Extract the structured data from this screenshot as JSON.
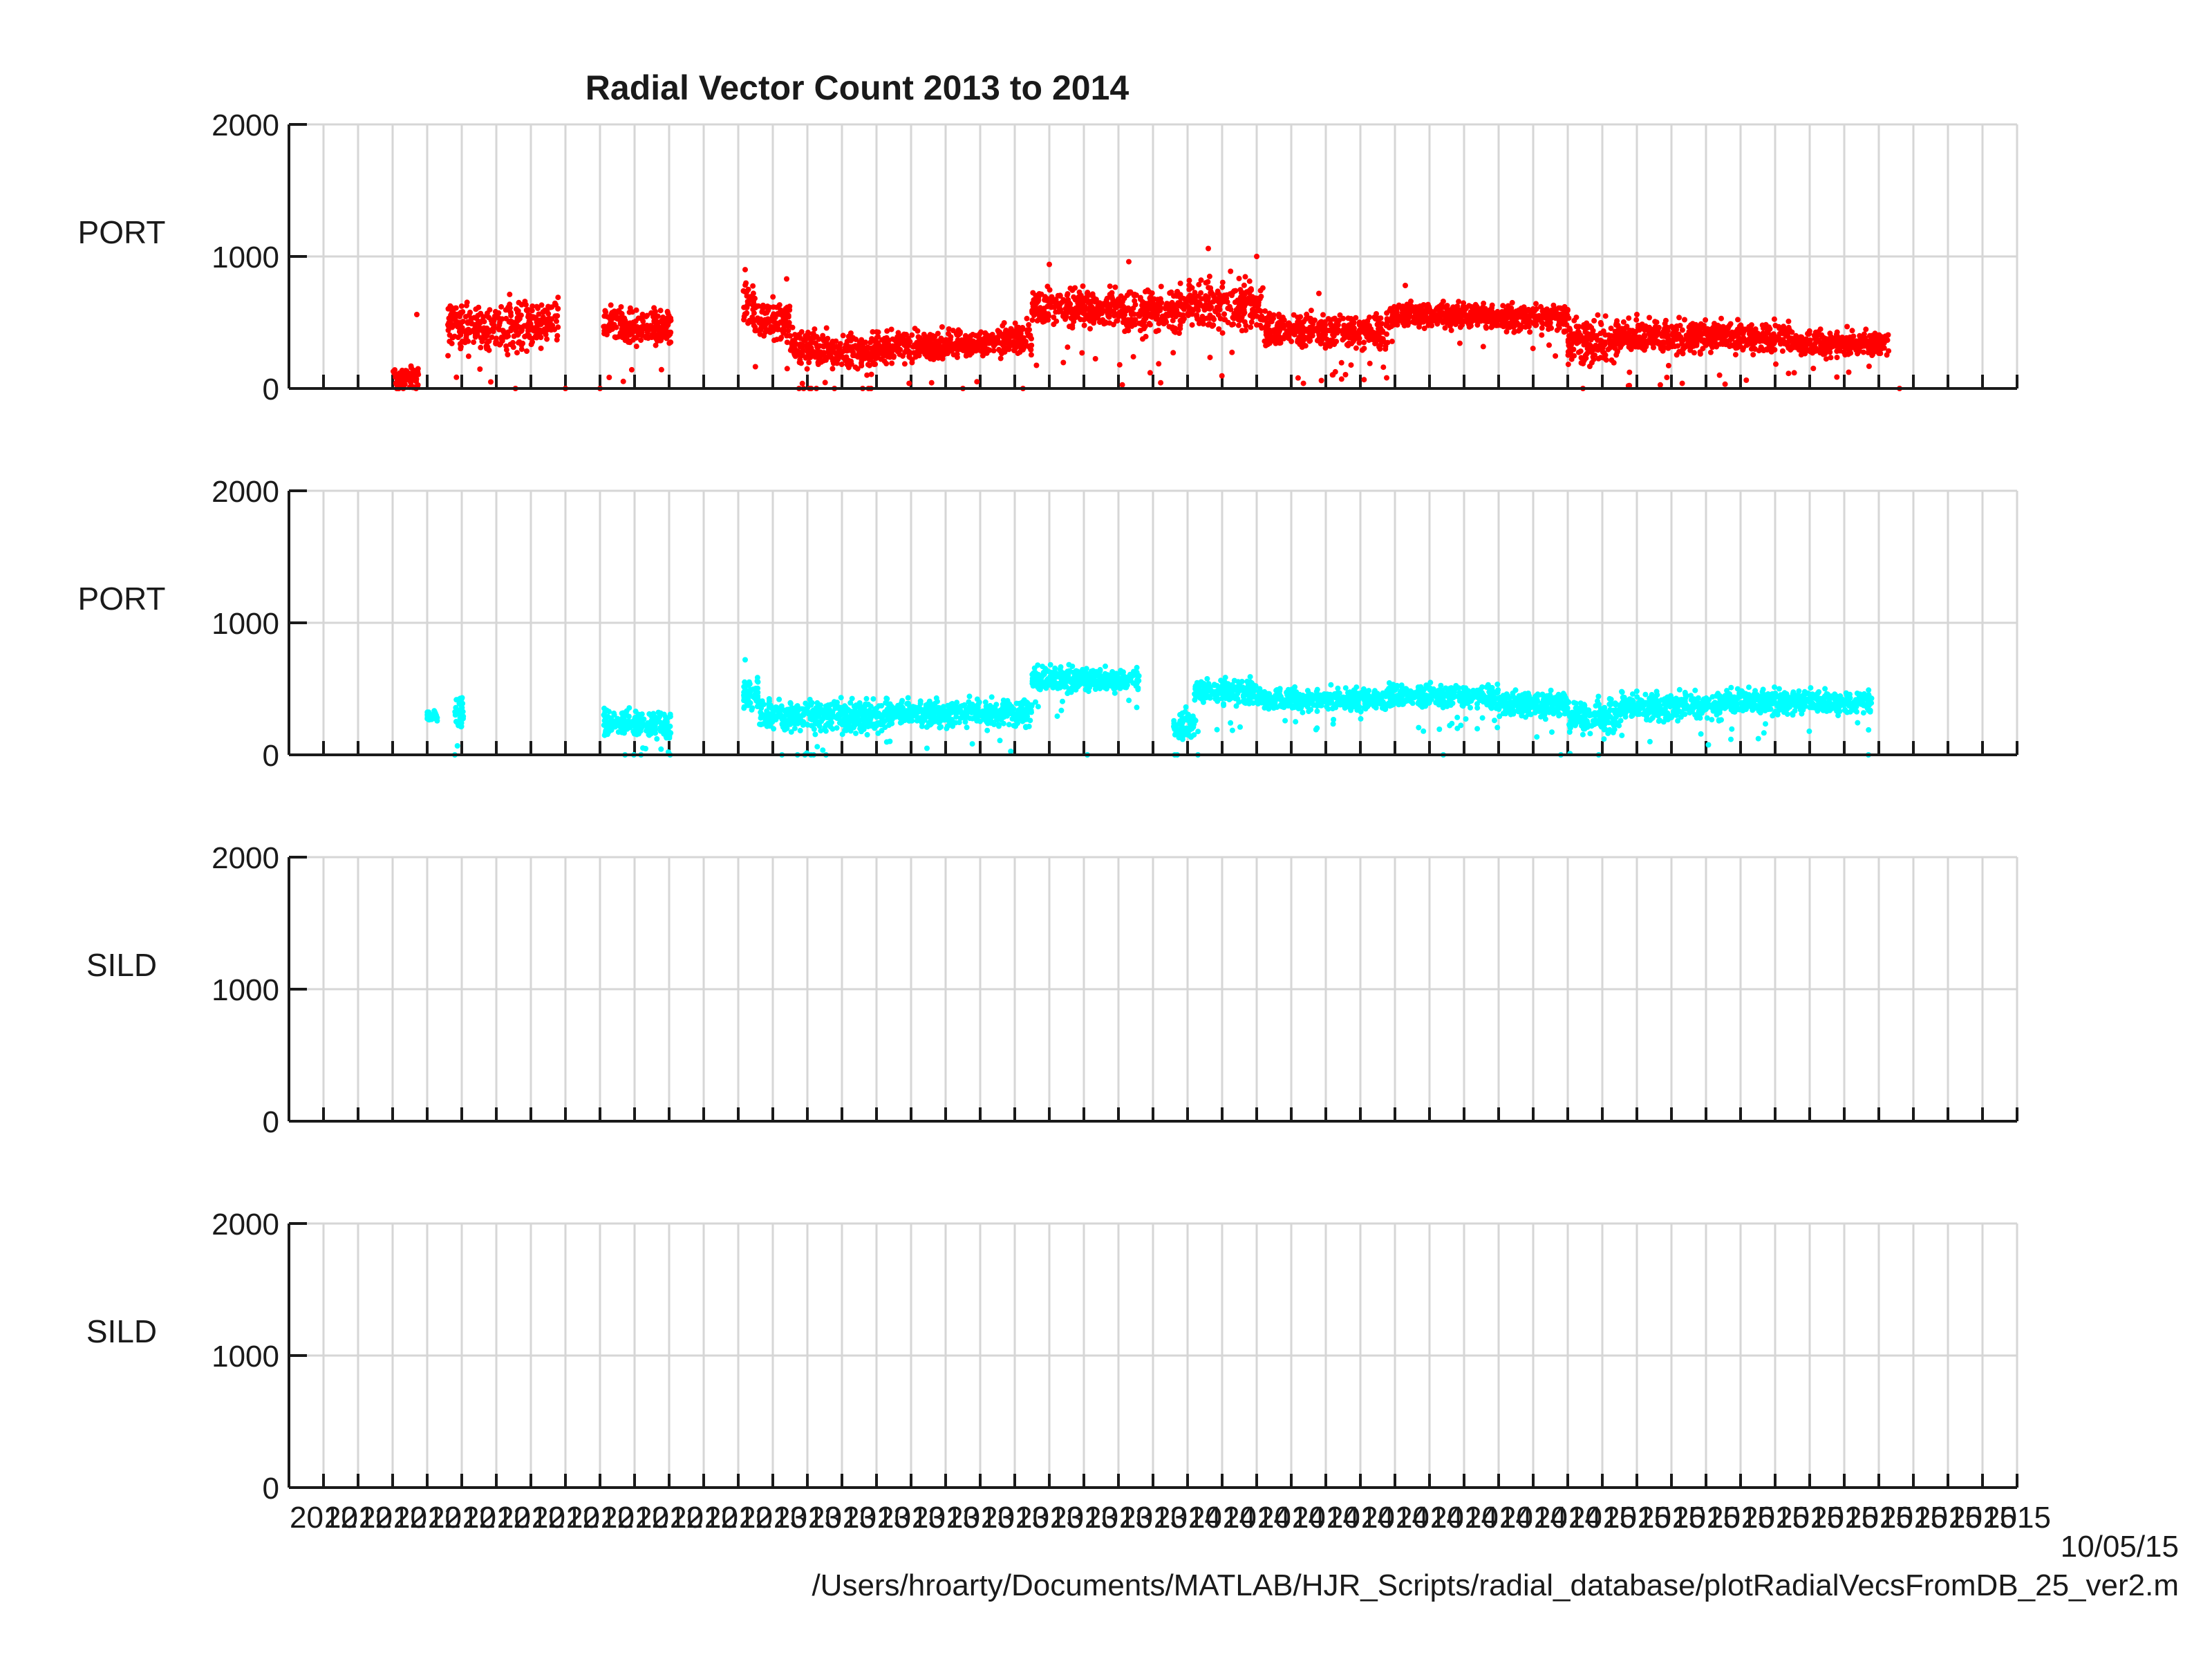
{
  "figure": {
    "title": "Radial Vector Count 2013 to  2014",
    "footer_date": "10/05/15",
    "footer_path": "/Users/hroarty/Documents/MATLAB/HJR_Scripts/radial_database/plotRadialVecsFromDB_25_ver2.m",
    "x_tick_labels": [
      "2012",
      "2012",
      "2012",
      "2012",
      "2012",
      "2012",
      "2012",
      "2012",
      "2012",
      "2012",
      "2012",
      "2012",
      "2012",
      "2013",
      "2013",
      "2013",
      "2013",
      "2013",
      "2013",
      "2013",
      "2013",
      "2013",
      "2013",
      "2013",
      "2013",
      "2014",
      "2014",
      "2014",
      "2014",
      "2014",
      "2014",
      "2014",
      "2014",
      "2014",
      "2014",
      "2014",
      "2014",
      "2015",
      "2015",
      "2015",
      "2015",
      "2015",
      "2015",
      "2015",
      "2015",
      "2015",
      "2015",
      "2015",
      "2015",
      "2015"
    ]
  },
  "chart_data": [
    {
      "type": "scatter",
      "ylabel": "PORT",
      "color": "#ff0000",
      "ylim": [
        0,
        2000
      ],
      "yticks": [
        "0",
        "1000",
        "2000"
      ],
      "grid": true,
      "segments": [
        {
          "x0": 2.0,
          "x1": 2.75,
          "y": 80,
          "spread": 120
        },
        {
          "x0": 3.6,
          "x1": 6.8,
          "y": 480,
          "spread": 260
        },
        {
          "x0": 8.1,
          "x1": 10.05,
          "y": 470,
          "spread": 200
        },
        {
          "x0": 12.15,
          "x1": 12.45,
          "y": 620,
          "spread": 250
        },
        {
          "x0": 12.45,
          "x1": 13.5,
          "y": 520,
          "spread": 200
        },
        {
          "x0": 13.5,
          "x1": 15.0,
          "y": 300,
          "spread": 180
        },
        {
          "x0": 15.0,
          "x1": 16.0,
          "y": 280,
          "spread": 200
        },
        {
          "x0": 16.0,
          "x1": 17.8,
          "y": 320,
          "spread": 170
        },
        {
          "x0": 17.8,
          "x1": 19.5,
          "y": 340,
          "spread": 140
        },
        {
          "x0": 19.5,
          "x1": 20.5,
          "y": 360,
          "spread": 180
        },
        {
          "x0": 20.5,
          "x1": 23.0,
          "y": 610,
          "spread": 200
        },
        {
          "x0": 23.0,
          "x1": 25.0,
          "y": 590,
          "spread": 260
        },
        {
          "x0": 25.0,
          "x1": 27.2,
          "y": 630,
          "spread": 280
        },
        {
          "x0": 27.2,
          "x1": 30.8,
          "y": 430,
          "spread": 180
        },
        {
          "x0": 30.8,
          "x1": 33.5,
          "y": 560,
          "spread": 140
        },
        {
          "x0": 33.5,
          "x1": 36.0,
          "y": 540,
          "spread": 150
        },
        {
          "x0": 36.0,
          "x1": 37.5,
          "y": 360,
          "spread": 240
        },
        {
          "x0": 37.5,
          "x1": 42.5,
          "y": 390,
          "spread": 170
        },
        {
          "x0": 42.5,
          "x1": 45.3,
          "y": 340,
          "spread": 140
        }
      ],
      "outliers": [
        [
          2.7,
          560
        ],
        [
          7.0,
          0
        ],
        [
          8.0,
          0
        ],
        [
          12.2,
          900
        ],
        [
          13.4,
          830
        ],
        [
          21.0,
          940
        ],
        [
          23.3,
          960
        ],
        [
          25.6,
          1060
        ],
        [
          27.0,
          1000
        ],
        [
          28.8,
          720
        ],
        [
          31.3,
          780
        ],
        [
          38.0,
          560
        ],
        [
          45.6,
          0
        ],
        [
          15.6,
          0
        ],
        [
          18.5,
          0
        ]
      ]
    },
    {
      "type": "scatter",
      "ylabel": "PORT",
      "color": "#00ffff",
      "ylim": [
        0,
        2000
      ],
      "yticks": [
        "0",
        "1000",
        "2000"
      ],
      "grid": true,
      "segments": [
        {
          "x0": 3.0,
          "x1": 3.3,
          "y": 290,
          "spread": 60
        },
        {
          "x0": 3.8,
          "x1": 4.05,
          "y": 350,
          "spread": 200
        },
        {
          "x0": 8.1,
          "x1": 10.05,
          "y": 230,
          "spread": 140
        },
        {
          "x0": 12.15,
          "x1": 12.6,
          "y": 450,
          "spread": 180
        },
        {
          "x0": 12.6,
          "x1": 15.0,
          "y": 300,
          "spread": 170
        },
        {
          "x0": 15.0,
          "x1": 16.2,
          "y": 290,
          "spread": 190
        },
        {
          "x0": 16.2,
          "x1": 20.5,
          "y": 320,
          "spread": 150
        },
        {
          "x0": 20.5,
          "x1": 23.6,
          "y": 570,
          "spread": 130
        },
        {
          "x0": 24.6,
          "x1": 25.2,
          "y": 230,
          "spread": 160
        },
        {
          "x0": 25.2,
          "x1": 27.0,
          "y": 480,
          "spread": 140
        },
        {
          "x0": 27.0,
          "x1": 30.8,
          "y": 420,
          "spread": 120
        },
        {
          "x0": 30.8,
          "x1": 34.0,
          "y": 440,
          "spread": 120
        },
        {
          "x0": 34.0,
          "x1": 36.0,
          "y": 390,
          "spread": 140
        },
        {
          "x0": 36.0,
          "x1": 37.5,
          "y": 300,
          "spread": 200
        },
        {
          "x0": 37.5,
          "x1": 40.5,
          "y": 370,
          "spread": 150
        },
        {
          "x0": 40.5,
          "x1": 44.8,
          "y": 400,
          "spread": 130
        }
      ],
      "outliers": [
        [
          3.8,
          0
        ],
        [
          12.2,
          720
        ],
        [
          20.6,
          400
        ],
        [
          22.1,
          0
        ],
        [
          24.7,
          0
        ],
        [
          25.3,
          0
        ],
        [
          32.4,
          0
        ],
        [
          35.8,
          0
        ],
        [
          44.7,
          0
        ]
      ]
    },
    {
      "type": "scatter",
      "ylabel": "SILD",
      "color": "#0000ff",
      "ylim": [
        0,
        2000
      ],
      "yticks": [
        "0",
        "1000",
        "2000"
      ],
      "grid": true,
      "segments": [],
      "outliers": []
    },
    {
      "type": "scatter",
      "ylabel": "SILD",
      "color": "#0000ff",
      "ylim": [
        0,
        2000
      ],
      "yticks": [
        "0",
        "1000",
        "2000"
      ],
      "grid": true,
      "segments": [],
      "outliers": []
    }
  ]
}
